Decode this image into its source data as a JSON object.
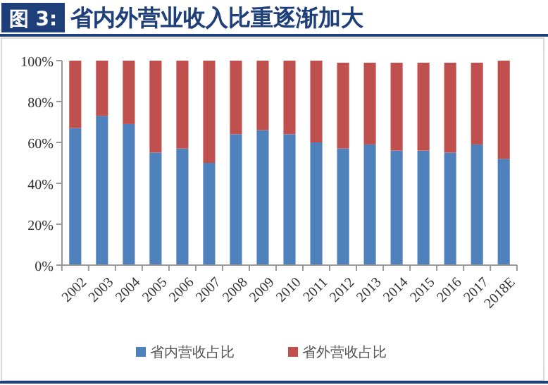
{
  "chart_data": {
    "type": "bar",
    "title": "省内外营业收入比重逐渐加大",
    "annotations": [
      "图 3:"
    ],
    "categories": [
      "2002",
      "2003",
      "2004",
      "2005",
      "2006",
      "2007",
      "2008",
      "2009",
      "2010",
      "2011",
      "2012",
      "2013",
      "2014",
      "2015",
      "2016",
      "2017",
      "2018E"
    ],
    "stacked": true,
    "series": [
      {
        "name": "省内营收占比",
        "color": "#4f81bd",
        "values": [
          67,
          73,
          69,
          55,
          57,
          50,
          64,
          66,
          64,
          60,
          57,
          59,
          56,
          56,
          55,
          59,
          52
        ]
      },
      {
        "name": "省外营收占比",
        "color": "#c0504d",
        "values": [
          33,
          27,
          31,
          45,
          43,
          50,
          36,
          34,
          36,
          40,
          42,
          40,
          43,
          43,
          44,
          40,
          48
        ]
      }
    ],
    "ylim": [
      0,
      100
    ],
    "yticks": [
      {
        "value": 0,
        "label": "0%"
      },
      {
        "value": 20,
        "label": "20%"
      },
      {
        "value": 40,
        "label": "40%"
      },
      {
        "value": 60,
        "label": "60%"
      },
      {
        "value": 80,
        "label": "80%"
      },
      {
        "value": 100,
        "label": "100%"
      }
    ],
    "grid": false,
    "legend": "bottom"
  }
}
